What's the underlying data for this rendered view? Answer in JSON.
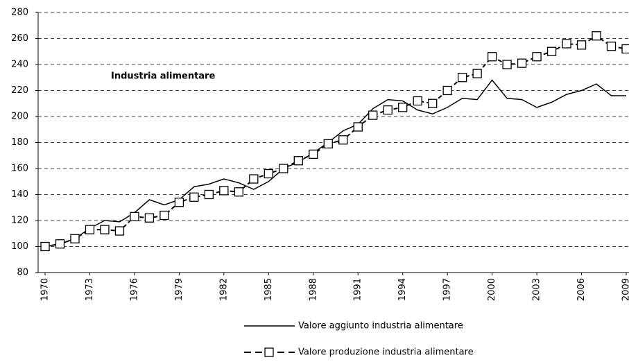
{
  "chart_data": {
    "type": "line",
    "annotation": "Industria alimentare",
    "x": [
      1970,
      1971,
      1972,
      1973,
      1974,
      1975,
      1976,
      1977,
      1978,
      1979,
      1980,
      1981,
      1982,
      1983,
      1984,
      1985,
      1986,
      1987,
      1988,
      1989,
      1990,
      1991,
      1992,
      1993,
      1994,
      1995,
      1996,
      1997,
      1998,
      1999,
      2000,
      2001,
      2002,
      2003,
      2004,
      2005,
      2006,
      2007,
      2008,
      2009
    ],
    "xlim": [
      1970,
      2009
    ],
    "xticks": [
      1970,
      1973,
      1976,
      1979,
      1982,
      1985,
      1988,
      1991,
      1994,
      1997,
      2000,
      2003,
      2006,
      2009
    ],
    "ylim": [
      80,
      280
    ],
    "yticks": [
      80,
      100,
      120,
      140,
      160,
      180,
      200,
      220,
      240,
      260,
      280
    ],
    "grid": true,
    "series": [
      {
        "name": "Valore aggiunto industria alimentare",
        "color": "#000000",
        "style": "solid",
        "values": [
          100,
          102,
          106,
          114,
          120,
          119,
          126,
          136,
          132,
          136,
          146,
          148,
          152,
          149,
          144,
          150,
          160,
          165,
          172,
          180,
          189,
          194,
          206,
          213,
          212,
          205,
          202,
          207,
          214,
          213,
          228,
          214,
          213,
          207,
          211,
          217,
          220,
          225,
          216,
          216
        ]
      },
      {
        "name": "Valore produzione industria alimentare",
        "color": "#000000",
        "style": "dashed-square",
        "values": [
          100,
          102,
          106,
          113,
          113,
          112,
          123,
          122,
          124,
          134,
          138,
          140,
          143,
          142,
          152,
          156,
          160,
          166,
          171,
          179,
          182,
          192,
          201,
          205,
          207,
          212,
          210,
          220,
          230,
          233,
          246,
          240,
          241,
          246,
          250,
          256,
          255,
          262,
          254,
          252
        ]
      }
    ]
  }
}
